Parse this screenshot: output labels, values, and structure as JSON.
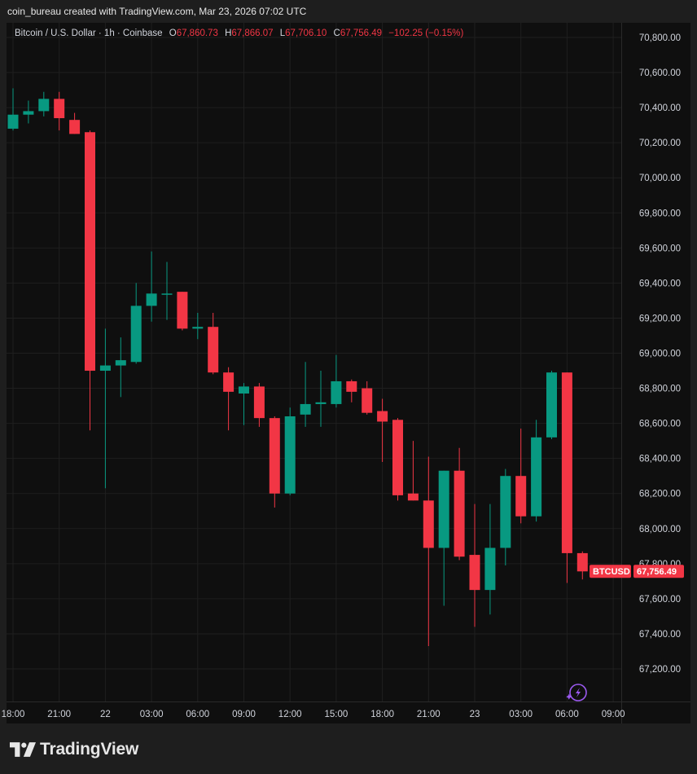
{
  "attribution": "coin_bureau created with TradingView.com, Mar 23, 2026 07:02 UTC",
  "legend": {
    "symbol": "Bitcoin / U.S. Dollar · 1h · Coinbase",
    "open_label": "O",
    "open": "67,860.73",
    "high_label": "H",
    "high": "67,866.07",
    "low_label": "L",
    "low": "67,706.10",
    "close_label": "C",
    "close": "67,756.49",
    "change": "−102.25 (−0.15%)"
  },
  "price_tag": {
    "symbol": "BTCUSD",
    "price": "67,756.49",
    "value": 67756.49
  },
  "brand": "TradingView",
  "colors": {
    "up": "#089981",
    "down": "#f23645",
    "background": "#0f0f0f",
    "grid": "#1f1f1f",
    "text": "#d1d4dc"
  },
  "icons": {
    "logo": "tradingview-logo-icon",
    "lightning": "lightning-icon"
  },
  "chart_data": {
    "type": "candlestick",
    "timeframe": "1h",
    "ylim": [
      67050,
      70900
    ],
    "yticks": [
      67200,
      67400,
      67600,
      67800,
      68000,
      68200,
      68400,
      68600,
      68800,
      69000,
      69200,
      69400,
      69600,
      69800,
      70000,
      70200,
      70400,
      70600,
      70800
    ],
    "ytick_labels": [
      "67,200.00",
      "67,400.00",
      "67,600.00",
      "67,800.00",
      "68,000.00",
      "68,200.00",
      "68,400.00",
      "68,600.00",
      "68,800.00",
      "69,000.00",
      "69,200.00",
      "69,400.00",
      "69,600.00",
      "69,800.00",
      "70,000.00",
      "70,200.00",
      "70,400.00",
      "70,600.00",
      "70,800.00"
    ],
    "xticks": [
      {
        "index": 0,
        "label": "18:00"
      },
      {
        "index": 3,
        "label": "21:00"
      },
      {
        "index": 6,
        "label": "22"
      },
      {
        "index": 9,
        "label": "03:00"
      },
      {
        "index": 12,
        "label": "06:00"
      },
      {
        "index": 15,
        "label": "09:00"
      },
      {
        "index": 18,
        "label": "12:00"
      },
      {
        "index": 21,
        "label": "15:00"
      },
      {
        "index": 24,
        "label": "18:00"
      },
      {
        "index": 27,
        "label": "21:00"
      },
      {
        "index": 30,
        "label": "23"
      },
      {
        "index": 33,
        "label": "03:00"
      },
      {
        "index": 36,
        "label": "06:00"
      },
      {
        "index": 39,
        "label": "09:00"
      }
    ],
    "candles": [
      {
        "o": 70280,
        "h": 70510,
        "l": 70270,
        "c": 70360
      },
      {
        "o": 70360,
        "h": 70440,
        "l": 70310,
        "c": 70380
      },
      {
        "o": 70380,
        "h": 70490,
        "l": 70350,
        "c": 70450
      },
      {
        "o": 70450,
        "h": 70490,
        "l": 70270,
        "c": 70340
      },
      {
        "o": 70330,
        "h": 70370,
        "l": 70250,
        "c": 70250
      },
      {
        "o": 70260,
        "h": 70270,
        "l": 68560,
        "c": 68900
      },
      {
        "o": 68900,
        "h": 69140,
        "l": 68230,
        "c": 68930
      },
      {
        "o": 68930,
        "h": 69090,
        "l": 68750,
        "c": 68960
      },
      {
        "o": 68950,
        "h": 69400,
        "l": 68940,
        "c": 69270
      },
      {
        "o": 69270,
        "h": 69580,
        "l": 69180,
        "c": 69340
      },
      {
        "o": 69340,
        "h": 69520,
        "l": 69190,
        "c": 69340
      },
      {
        "o": 69350,
        "h": 69350,
        "l": 69130,
        "c": 69140
      },
      {
        "o": 69140,
        "h": 69230,
        "l": 69080,
        "c": 69150
      },
      {
        "o": 69150,
        "h": 69230,
        "l": 68880,
        "c": 68890
      },
      {
        "o": 68890,
        "h": 68920,
        "l": 68560,
        "c": 68780
      },
      {
        "o": 68770,
        "h": 68830,
        "l": 68590,
        "c": 68810
      },
      {
        "o": 68810,
        "h": 68830,
        "l": 68580,
        "c": 68630
      },
      {
        "o": 68630,
        "h": 68640,
        "l": 68120,
        "c": 68200
      },
      {
        "o": 68200,
        "h": 68690,
        "l": 68190,
        "c": 68640
      },
      {
        "o": 68650,
        "h": 68950,
        "l": 68580,
        "c": 68710
      },
      {
        "o": 68710,
        "h": 68900,
        "l": 68580,
        "c": 68720
      },
      {
        "o": 68710,
        "h": 68990,
        "l": 68690,
        "c": 68840
      },
      {
        "o": 68840,
        "h": 68850,
        "l": 68720,
        "c": 68780
      },
      {
        "o": 68800,
        "h": 68840,
        "l": 68650,
        "c": 68660
      },
      {
        "o": 68670,
        "h": 68740,
        "l": 68380,
        "c": 68610
      },
      {
        "o": 68620,
        "h": 68630,
        "l": 68160,
        "c": 68190
      },
      {
        "o": 68200,
        "h": 68500,
        "l": 68160,
        "c": 68160
      },
      {
        "o": 68160,
        "h": 68410,
        "l": 67330,
        "c": 67890
      },
      {
        "o": 67890,
        "h": 68330,
        "l": 67560,
        "c": 68330
      },
      {
        "o": 68330,
        "h": 68460,
        "l": 67820,
        "c": 67840
      },
      {
        "o": 67850,
        "h": 68140,
        "l": 67440,
        "c": 67650
      },
      {
        "o": 67650,
        "h": 68140,
        "l": 67510,
        "c": 67890
      },
      {
        "o": 67890,
        "h": 68340,
        "l": 67790,
        "c": 68300
      },
      {
        "o": 68300,
        "h": 68570,
        "l": 68030,
        "c": 68070
      },
      {
        "o": 68070,
        "h": 68620,
        "l": 68040,
        "c": 68520
      },
      {
        "o": 68520,
        "h": 68900,
        "l": 68510,
        "c": 68890
      },
      {
        "o": 68890,
        "h": 68890,
        "l": 67690,
        "c": 67860
      },
      {
        "o": 67860,
        "h": 67870,
        "l": 67710,
        "c": 67756
      }
    ]
  }
}
